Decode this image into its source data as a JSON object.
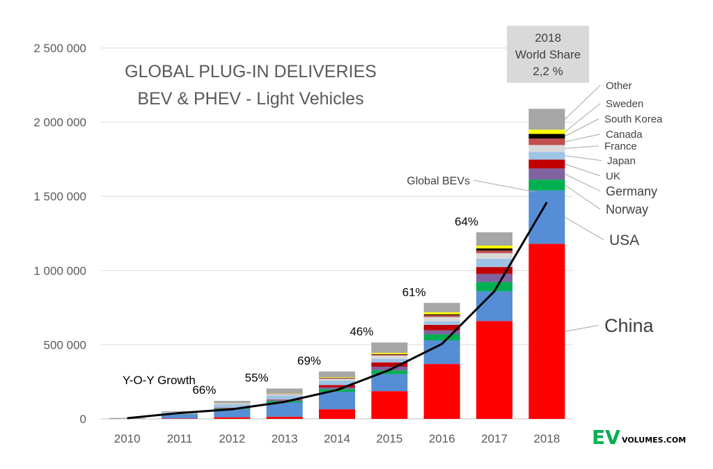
{
  "chart_data": {
    "type": "bar",
    "stacked": true,
    "title_lines": [
      "GLOBAL PLUG-IN DELIVERIES",
      "BEV & PHEV - Light Vehicles"
    ],
    "categories": [
      "2010",
      "2011",
      "2012",
      "2013",
      "2014",
      "2015",
      "2016",
      "2017",
      "2018"
    ],
    "ylim": [
      0,
      2500000
    ],
    "yticks": [
      {
        "value": 0,
        "label": "0"
      },
      {
        "value": 500000,
        "label": "500 000"
      },
      {
        "value": 1000000,
        "label": "1 000 000"
      },
      {
        "value": 1500000,
        "label": "1 500 000"
      },
      {
        "value": 2000000,
        "label": "2 000 000"
      },
      {
        "value": 2500000,
        "label": "2 500 000"
      }
    ],
    "grid": true,
    "series": [
      {
        "name": "China",
        "color": "#ff0000",
        "values": [
          1000,
          3000,
          11000,
          15000,
          65000,
          187000,
          370000,
          660000,
          1180000
        ]
      },
      {
        "name": "USA",
        "color": "#558ed5",
        "values": [
          500,
          26000,
          55000,
          95000,
          118000,
          115000,
          160000,
          200000,
          360000
        ]
      },
      {
        "name": "Norway",
        "color": "#00b050",
        "values": [
          300,
          2000,
          4000,
          10000,
          18000,
          25000,
          40000,
          62000,
          73000
        ]
      },
      {
        "name": "Germany",
        "color": "#8064a2",
        "values": [
          500,
          2000,
          3000,
          6000,
          12000,
          25000,
          27000,
          55000,
          75000
        ]
      },
      {
        "name": "UK",
        "color": "#c00000",
        "values": [
          300,
          1000,
          2000,
          3000,
          15000,
          29000,
          37000,
          47000,
          60000
        ]
      },
      {
        "name": "Japan",
        "color": "#9dc3e6",
        "values": [
          2000,
          11000,
          24000,
          29000,
          31000,
          24000,
          24000,
          56000,
          52000
        ]
      },
      {
        "name": "France",
        "color": "#d9d9d9",
        "values": [
          300,
          3000,
          6000,
          9000,
          11000,
          22000,
          29000,
          37000,
          46000
        ]
      },
      {
        "name": "Canada",
        "color": "#c0504d",
        "values": [
          100,
          500,
          1000,
          2000,
          5000,
          7000,
          12000,
          18000,
          44000
        ]
      },
      {
        "name": "South Korea",
        "color": "#000000",
        "values": [
          100,
          300,
          500,
          800,
          1500,
          3000,
          6000,
          14000,
          31000
        ]
      },
      {
        "name": "Sweden",
        "color": "#ffff00",
        "values": [
          100,
          200,
          800,
          2000,
          4000,
          8000,
          14000,
          19000,
          29000
        ]
      },
      {
        "name": "Other",
        "color": "#a6a6a6",
        "values": [
          1800,
          3000,
          14000,
          33000,
          39000,
          70000,
          63000,
          90000,
          140000
        ]
      }
    ],
    "line": {
      "name": "Global BEVs",
      "color": "#000000",
      "values": [
        5000,
        40000,
        65000,
        115000,
        195000,
        330000,
        505000,
        860000,
        1460000
      ]
    },
    "growth_labels": [
      {
        "index": 2,
        "label": "66%"
      },
      {
        "index": 3,
        "label": "55%"
      },
      {
        "index": 4,
        "label": "69%"
      },
      {
        "index": 5,
        "label": "46%"
      },
      {
        "index": 6,
        "label": "61%"
      },
      {
        "index": 7,
        "label": "64%"
      }
    ],
    "growth_caption": "Y-O-Y Growth",
    "world_share_box": [
      "2018",
      "World Share",
      "2,2 %"
    ],
    "brand": {
      "ev": "EV",
      "volumes": "VOLUMES.COM",
      "ev_color": "#00b050"
    }
  }
}
